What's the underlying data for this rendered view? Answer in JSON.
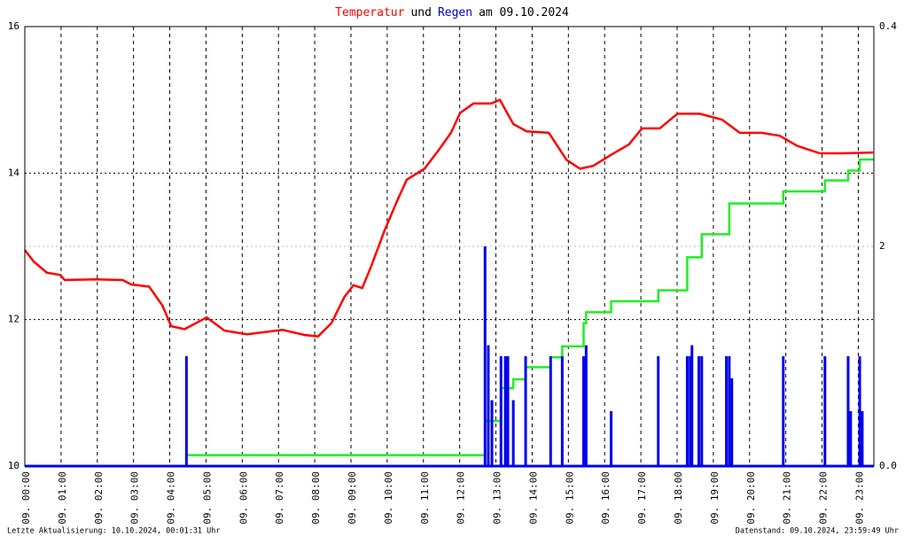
{
  "chart_data": {
    "type": "line",
    "title_parts": [
      {
        "text": "Temperatur",
        "color": "#ff0000"
      },
      {
        "text": "und",
        "color": "#000000"
      },
      {
        "text": "Regen",
        "color": "#0000cc"
      },
      {
        "text": "am 09.10.2024",
        "color": "#000000"
      }
    ],
    "xlim": [
      0,
      23.43
    ],
    "xticks": [
      {
        "value": 0,
        "label": "09. 00:00"
      },
      {
        "value": 1,
        "label": "09. 01:00"
      },
      {
        "value": 2,
        "label": "09. 02:00"
      },
      {
        "value": 3,
        "label": "09. 03:00"
      },
      {
        "value": 4,
        "label": "09. 04:00"
      },
      {
        "value": 5,
        "label": "09. 05:00"
      },
      {
        "value": 6,
        "label": "09. 06:00"
      },
      {
        "value": 7,
        "label": "09. 07:00"
      },
      {
        "value": 8,
        "label": "09. 08:00"
      },
      {
        "value": 9,
        "label": "09. 09:00"
      },
      {
        "value": 10,
        "label": "09. 10:00"
      },
      {
        "value": 11,
        "label": "09. 11:00"
      },
      {
        "value": 12,
        "label": "09. 12:00"
      },
      {
        "value": 13,
        "label": "09. 13:00"
      },
      {
        "value": 14,
        "label": "09. 14:00"
      },
      {
        "value": 15,
        "label": "09. 15:00"
      },
      {
        "value": 16,
        "label": "09. 16:00"
      },
      {
        "value": 17,
        "label": "09. 17:00"
      },
      {
        "value": 18,
        "label": "09. 18:00"
      },
      {
        "value": 19,
        "label": "09. 19:00"
      },
      {
        "value": 20,
        "label": "09. 20:00"
      },
      {
        "value": 21,
        "label": "09. 21:00"
      },
      {
        "value": 22,
        "label": "09. 22:00"
      },
      {
        "value": 23,
        "label": "09. 23:00"
      }
    ],
    "ylim": [
      10,
      16
    ],
    "yticks": [
      10,
      12,
      14,
      16
    ],
    "y2lim": [
      0,
      0.4
    ],
    "y2ticks": [
      {
        "value": 0,
        "label": "0.0"
      },
      0.4
    ],
    "y3lim": [
      0,
      4
    ],
    "y3ticks": [
      2
    ],
    "y3color": "#00dd00",
    "grid": true,
    "series": [
      {
        "type": "line",
        "axis": "y",
        "color": "#ff0000",
        "x": [
          0,
          0.25,
          0.61,
          0.98,
          1.1,
          1.96,
          2.7,
          2.94,
          3.43,
          3.8,
          4.04,
          4.41,
          5.02,
          5.51,
          6.13,
          7.11,
          7.72,
          8.09,
          8.46,
          8.82,
          9.07,
          9.31,
          9.56,
          9.93,
          10.29,
          10.54,
          11.03,
          11.4,
          11.76,
          12.01,
          12.38,
          12.87,
          13.11,
          13.48,
          13.85,
          14.46,
          14.95,
          15.32,
          15.69,
          16.18,
          16.67,
          17.03,
          17.52,
          18.01,
          18.63,
          19.24,
          19.73,
          20.34,
          20.83,
          21.32,
          21.94,
          22.55,
          23.41
        ],
        "values": [
          12.95,
          12.79,
          12.64,
          12.61,
          12.54,
          12.55,
          12.54,
          12.48,
          12.45,
          12.19,
          11.91,
          11.87,
          12.03,
          11.85,
          11.8,
          11.86,
          11.79,
          11.77,
          11.95,
          12.31,
          12.47,
          12.43,
          12.73,
          13.22,
          13.64,
          13.91,
          14.06,
          14.3,
          14.55,
          14.82,
          14.95,
          14.95,
          15.0,
          14.67,
          14.57,
          14.55,
          14.18,
          14.06,
          14.1,
          14.25,
          14.39,
          14.61,
          14.61,
          14.81,
          14.81,
          14.73,
          14.55,
          14.55,
          14.51,
          14.37,
          14.27,
          14.27,
          14.28
        ]
      },
      {
        "type": "bar",
        "axis": "y2",
        "color": "#0000ee",
        "x": [
          4.46,
          12.7,
          12.79,
          12.89,
          13.14,
          13.26,
          13.33,
          13.48,
          13.82,
          14.51,
          14.83,
          15.42,
          15.49,
          16.18,
          17.48,
          18.28,
          18.36,
          18.41,
          18.6,
          18.68,
          19.36,
          19.44,
          19.51,
          20.93,
          22.08,
          22.72,
          22.79,
          23.04,
          23.11
        ],
        "values": [
          0.1,
          0.2,
          0.11,
          0.06,
          0.1,
          0.1,
          0.1,
          0.06,
          0.1,
          0.1,
          0.1,
          0.1,
          0.11,
          0.05,
          0.1,
          0.1,
          0.1,
          0.11,
          0.1,
          0.1,
          0.1,
          0.1,
          0.08,
          0.1,
          0.1,
          0.1,
          0.05,
          0.1,
          0.05
        ]
      },
      {
        "type": "step",
        "axis": "y3",
        "color": "#22ee22",
        "x": [
          4.46,
          12.7,
          13.14,
          13.48,
          13.82,
          14.51,
          14.83,
          15.42,
          15.49,
          16.18,
          17.48,
          18.28,
          18.68,
          19.44,
          20.93,
          22.08,
          22.72,
          23.04
        ],
        "values": [
          0.1,
          0.41,
          0.71,
          0.79,
          0.9,
          0.99,
          1.09,
          1.3,
          1.4,
          1.5,
          1.6,
          1.9,
          2.11,
          2.39,
          2.5,
          2.6,
          2.69,
          2.79
        ]
      }
    ]
  },
  "footer": {
    "left": "Letzte Aktualisierung: 10.10.2024, 00:01:31 Uhr",
    "right": "Datenstand: 09.10.2024, 23:59:49 Uhr"
  }
}
